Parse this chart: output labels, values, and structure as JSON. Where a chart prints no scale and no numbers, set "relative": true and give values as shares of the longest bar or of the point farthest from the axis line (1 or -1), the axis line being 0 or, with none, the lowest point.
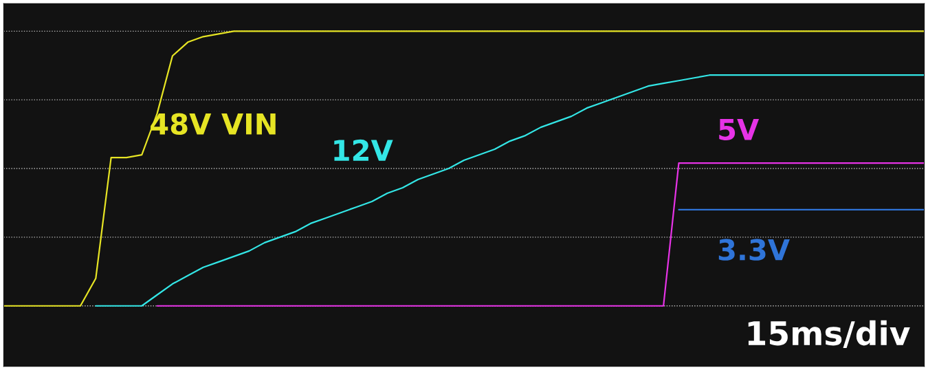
{
  "chart_data": {
    "type": "line",
    "relative": true,
    "categories": [
      null,
      null,
      null,
      null,
      null,
      null,
      null,
      null,
      null,
      null,
      null,
      null,
      null,
      null,
      null,
      null,
      null,
      null,
      null,
      null,
      null,
      null,
      null,
      null,
      null,
      null,
      null,
      null,
      null,
      null,
      null,
      null,
      null,
      null,
      null,
      null,
      null,
      null,
      null,
      null,
      null,
      null,
      null,
      null,
      null,
      null,
      null,
      null,
      null,
      null,
      null,
      null,
      null,
      null,
      null,
      null,
      null,
      null,
      null,
      null,
      null
    ],
    "grid": "y",
    "legend": false,
    "line_style": "solid",
    "marker": "none",
    "series": [
      {
        "name": "48V VIN",
        "color": "#e6e424",
        "values": [
          0,
          0,
          0,
          0,
          0,
          0,
          0.1,
          0.54,
          0.54,
          0.55,
          0.7,
          0.91,
          0.96,
          0.98,
          0.99,
          1,
          1,
          1,
          1,
          1,
          1,
          1,
          1,
          1,
          1,
          1,
          1,
          1,
          1,
          1,
          1,
          1,
          1,
          1,
          1,
          1,
          1,
          1,
          1,
          1,
          1,
          1,
          1,
          1,
          1,
          1,
          1,
          1,
          1,
          1,
          1,
          1,
          1,
          1,
          1,
          1,
          1,
          1,
          1,
          1,
          1
        ]
      },
      {
        "name": "12V",
        "color": "#33e6e6",
        "values": [
          null,
          null,
          null,
          null,
          null,
          null,
          0,
          0,
          0,
          0,
          0.04,
          0.08,
          0.11,
          0.14,
          0.16,
          0.18,
          0.2,
          0.23,
          0.25,
          0.27,
          0.3,
          0.32,
          0.34,
          0.36,
          0.38,
          0.41,
          0.43,
          0.46,
          0.48,
          0.5,
          0.53,
          0.55,
          0.57,
          0.6,
          0.62,
          0.65,
          0.67,
          0.69,
          0.72,
          0.74,
          0.76,
          0.78,
          0.8,
          0.81,
          0.82,
          0.83,
          0.84,
          0.84,
          0.84,
          0.84,
          0.84,
          0.84,
          0.84,
          0.84,
          0.84,
          0.84,
          0.84,
          0.84,
          0.84,
          0.84,
          0.84
        ]
      },
      {
        "name": "5V",
        "color": "#e633e6",
        "values": [
          null,
          null,
          null,
          null,
          null,
          null,
          null,
          null,
          null,
          null,
          0,
          0,
          0,
          0,
          0,
          0,
          0,
          0,
          0,
          0,
          0,
          0,
          0,
          0,
          0,
          0,
          0,
          0,
          0,
          0,
          0,
          0,
          0,
          0,
          0,
          0,
          0,
          0,
          0,
          0,
          0,
          0,
          0,
          0,
          0.52,
          0.52,
          0.52,
          0.52,
          0.52,
          0.52,
          0.52,
          0.52,
          0.52,
          0.52,
          0.52,
          0.52,
          0.52,
          0.52,
          0.52,
          0.52,
          0.52
        ]
      },
      {
        "name": "3.3V",
        "color": "#2f74d8",
        "values": [
          null,
          null,
          null,
          null,
          null,
          null,
          null,
          null,
          null,
          null,
          null,
          null,
          null,
          null,
          null,
          null,
          null,
          null,
          null,
          null,
          null,
          null,
          null,
          null,
          null,
          null,
          null,
          null,
          null,
          null,
          null,
          null,
          null,
          null,
          null,
          null,
          null,
          null,
          null,
          null,
          null,
          null,
          null,
          null,
          0.35,
          0.35,
          0.35,
          0.35,
          0.35,
          0.35,
          0.35,
          0.35,
          0.35,
          0.35,
          0.35,
          0.35,
          0.35,
          0.35,
          0.35,
          0.35,
          0.35
        ]
      }
    ],
    "annotations": [
      "15ms/div"
    ]
  }
}
